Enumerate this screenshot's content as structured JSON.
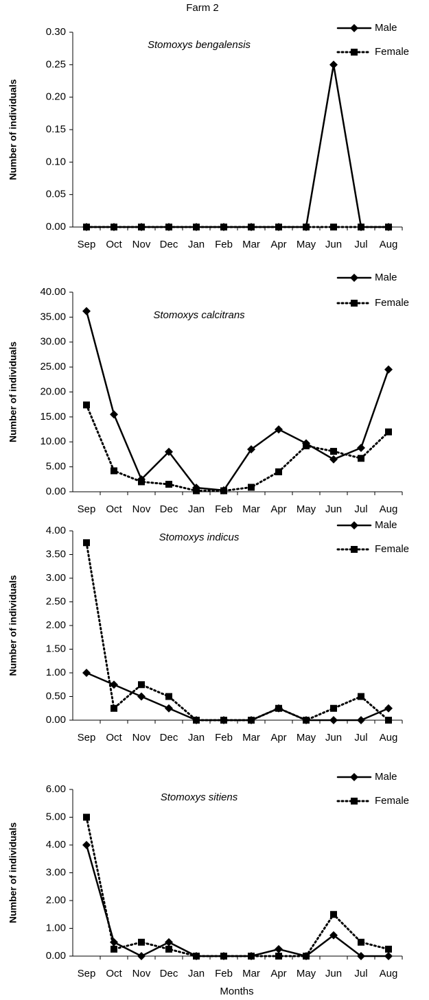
{
  "title": "Farm 2",
  "x_label": "Months",
  "chart_data": [
    {
      "type": "line",
      "title": "Stomoxys bengalensis",
      "y_label": "Number of individuals",
      "categories": [
        "Sep",
        "Oct",
        "Nov",
        "Dec",
        "Jan",
        "Feb",
        "Mar",
        "Apr",
        "May",
        "Jun",
        "Jul",
        "Aug"
      ],
      "series": [
        {
          "name": "Male",
          "color": "#000000",
          "line_style": "solid",
          "marker": "diamond",
          "values": [
            0,
            0,
            0,
            0,
            0,
            0,
            0,
            0,
            0,
            0.25,
            0,
            0
          ]
        },
        {
          "name": "Female",
          "color": "#000000",
          "line_style": "dotted",
          "marker": "square",
          "values": [
            0,
            0,
            0,
            0,
            0,
            0,
            0,
            0,
            0,
            0,
            0,
            0
          ]
        }
      ],
      "ylim": [
        0,
        0.3
      ],
      "yticks": [
        {
          "value": 0,
          "label": "0.00"
        },
        {
          "value": 0.05,
          "label": "0.05"
        },
        {
          "value": 0.1,
          "label": "0.10"
        },
        {
          "value": 0.15,
          "label": "0.15"
        },
        {
          "value": 0.2,
          "label": "0.20"
        },
        {
          "value": 0.25,
          "label": "0.25"
        },
        {
          "value": 0.3,
          "label": "0.30"
        }
      ],
      "legend": "upper right",
      "grid": false
    },
    {
      "type": "line",
      "title": "Stomoxys calcitrans",
      "y_label": "Number of individuals",
      "categories": [
        "Sep",
        "Oct",
        "Nov",
        "Dec",
        "Jan",
        "Feb",
        "Mar",
        "Apr",
        "May",
        "Jun",
        "Jul",
        "Aug"
      ],
      "series": [
        {
          "name": "Male",
          "color": "#000000",
          "line_style": "solid",
          "marker": "diamond",
          "values": [
            36.2,
            15.5,
            2.5,
            8,
            0.8,
            0.3,
            8.5,
            12.5,
            9.7,
            6.5,
            8.8,
            24.5
          ]
        },
        {
          "name": "Female",
          "color": "#000000",
          "line_style": "dotted",
          "marker": "square",
          "values": [
            17.4,
            4.2,
            2,
            1.5,
            0.2,
            0.2,
            0.9,
            4,
            9.2,
            8.1,
            6.7,
            12
          ]
        }
      ],
      "ylim": [
        0,
        40
      ],
      "yticks": [
        {
          "value": 0,
          "label": "0.00"
        },
        {
          "value": 5,
          "label": "5.00"
        },
        {
          "value": 10,
          "label": "10.00"
        },
        {
          "value": 15,
          "label": "15.00"
        },
        {
          "value": 20,
          "label": "20.00"
        },
        {
          "value": 25,
          "label": "25.00"
        },
        {
          "value": 30,
          "label": "30.00"
        },
        {
          "value": 35,
          "label": "35.00"
        },
        {
          "value": 40,
          "label": "40.00"
        }
      ],
      "legend": "upper right",
      "grid": false
    },
    {
      "type": "line",
      "title": "Stomoxys indicus",
      "y_label": "Number of individuals",
      "categories": [
        "Sep",
        "Oct",
        "Nov",
        "Dec",
        "Jan",
        "Feb",
        "Mar",
        "Apr",
        "May",
        "Jun",
        "Jul",
        "Aug"
      ],
      "series": [
        {
          "name": "Male",
          "color": "#000000",
          "line_style": "solid",
          "marker": "diamond",
          "values": [
            1,
            0.75,
            0.5,
            0.25,
            0,
            0,
            0,
            0.25,
            0,
            0,
            0,
            0.25
          ]
        },
        {
          "name": "Female",
          "color": "#000000",
          "line_style": "dotted",
          "marker": "square",
          "values": [
            3.75,
            0.25,
            0.75,
            0.5,
            0,
            0,
            0,
            0.25,
            0,
            0.25,
            0.5,
            0
          ]
        }
      ],
      "ylim": [
        0,
        4
      ],
      "yticks": [
        {
          "value": 0,
          "label": "0.00"
        },
        {
          "value": 0.5,
          "label": "0.50"
        },
        {
          "value": 1,
          "label": "1.00"
        },
        {
          "value": 1.5,
          "label": "1.50"
        },
        {
          "value": 2,
          "label": "2.00"
        },
        {
          "value": 2.5,
          "label": "2.50"
        },
        {
          "value": 3,
          "label": "3.00"
        },
        {
          "value": 3.5,
          "label": "3.50"
        },
        {
          "value": 4,
          "label": "4.00"
        }
      ],
      "legend": "upper right",
      "grid": false
    },
    {
      "type": "line",
      "title": "Stomoxys sitiens",
      "y_label": "Number of individuals",
      "categories": [
        "Sep",
        "Oct",
        "Nov",
        "Dec",
        "Jan",
        "Feb",
        "Mar",
        "Apr",
        "May",
        "Jun",
        "Jul",
        "Aug"
      ],
      "series": [
        {
          "name": "Male",
          "color": "#000000",
          "line_style": "solid",
          "marker": "diamond",
          "values": [
            4,
            0.5,
            0,
            0.5,
            0,
            0,
            0,
            0.25,
            0,
            0.75,
            0,
            0
          ]
        },
        {
          "name": "Female",
          "color": "#000000",
          "line_style": "dotted",
          "marker": "square",
          "values": [
            5,
            0.25,
            0.5,
            0.25,
            0,
            0,
            0,
            0,
            0,
            1.5,
            0.5,
            0.25
          ]
        }
      ],
      "ylim": [
        0,
        6
      ],
      "yticks": [
        {
          "value": 0,
          "label": "0.00"
        },
        {
          "value": 1,
          "label": "1.00"
        },
        {
          "value": 2,
          "label": "2.00"
        },
        {
          "value": 3,
          "label": "3.00"
        },
        {
          "value": 4,
          "label": "4.00"
        },
        {
          "value": 5,
          "label": "5.00"
        },
        {
          "value": 6,
          "label": "6.00"
        }
      ],
      "legend": "upper right",
      "grid": false
    }
  ]
}
